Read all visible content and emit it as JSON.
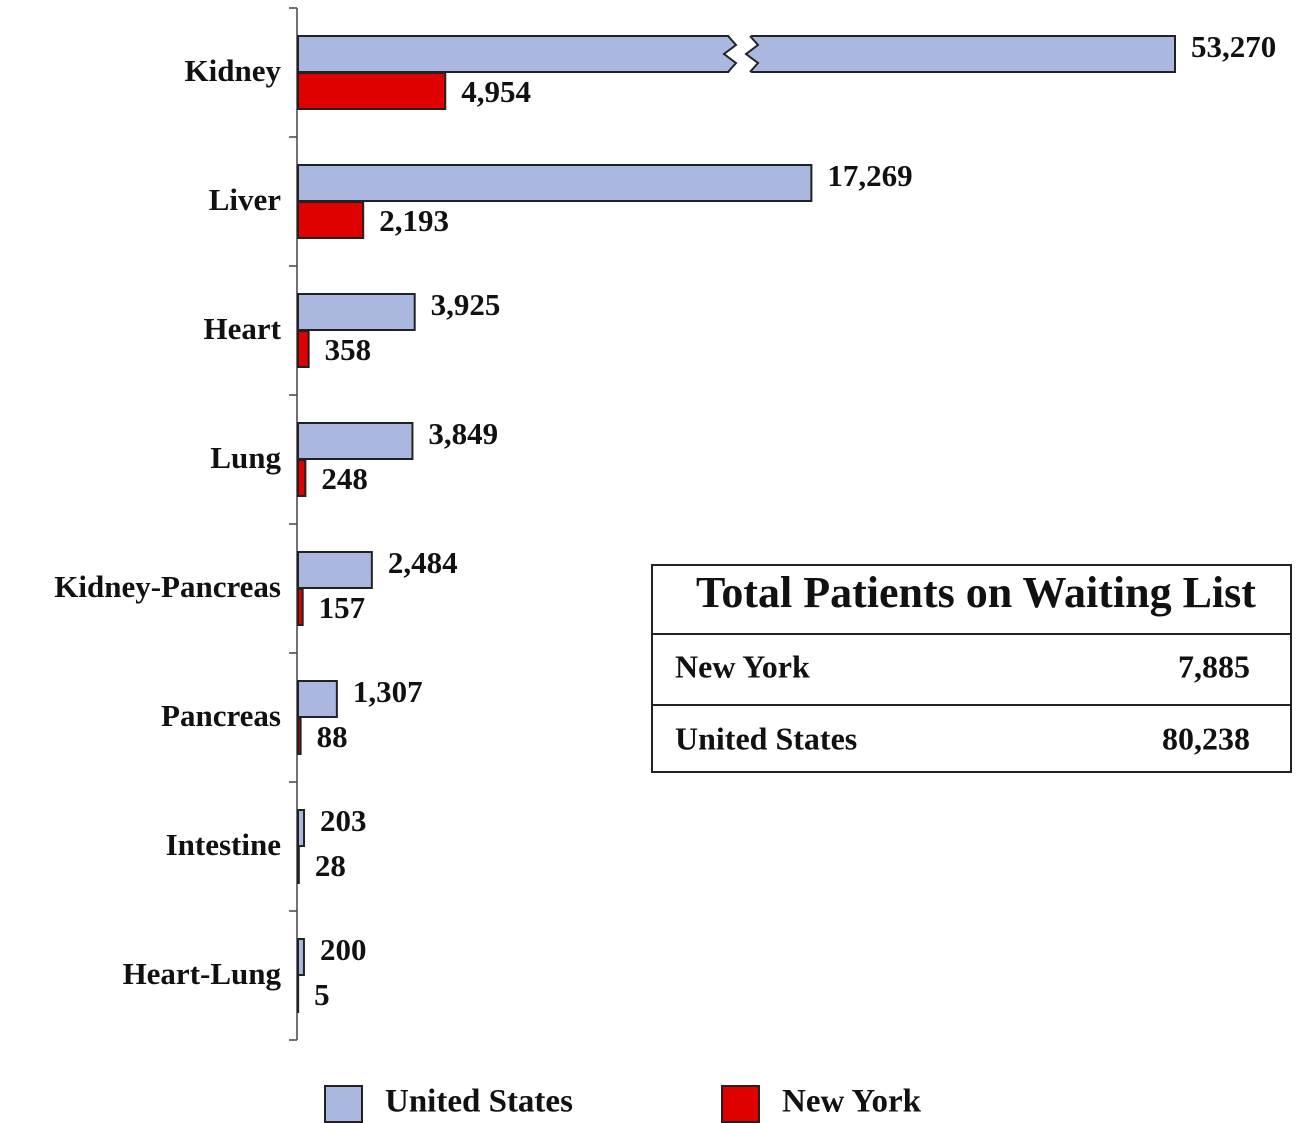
{
  "chart_data": {
    "type": "bar",
    "orientation": "horizontal",
    "axis_break": true,
    "categories": [
      "Kidney",
      "Liver",
      "Heart",
      "Lung",
      "Kidney-Pancreas",
      "Pancreas",
      "Intestine",
      "Heart-Lung"
    ],
    "series": [
      {
        "name": "United States",
        "color": "#aab8e0",
        "values": [
          53270,
          17269,
          3925,
          3849,
          2484,
          1307,
          203,
          200
        ],
        "value_labels": [
          "53,270",
          "17,269",
          "3,925",
          "3,849",
          "2,484",
          "1,307",
          "203",
          "200"
        ]
      },
      {
        "name": "New York",
        "color": "#e00000",
        "values": [
          4954,
          2193,
          358,
          248,
          157,
          88,
          28,
          5
        ],
        "value_labels": [
          "4,954",
          "2,193",
          "358",
          "248",
          "157",
          "88",
          "28",
          "5"
        ]
      }
    ],
    "xlim": [
      0,
      29500
    ],
    "legend": "bottom"
  },
  "table": {
    "title": "Total Patients on Waiting List",
    "rows": [
      [
        "New York",
        "7,885"
      ],
      [
        "United States",
        "80,238"
      ]
    ]
  }
}
